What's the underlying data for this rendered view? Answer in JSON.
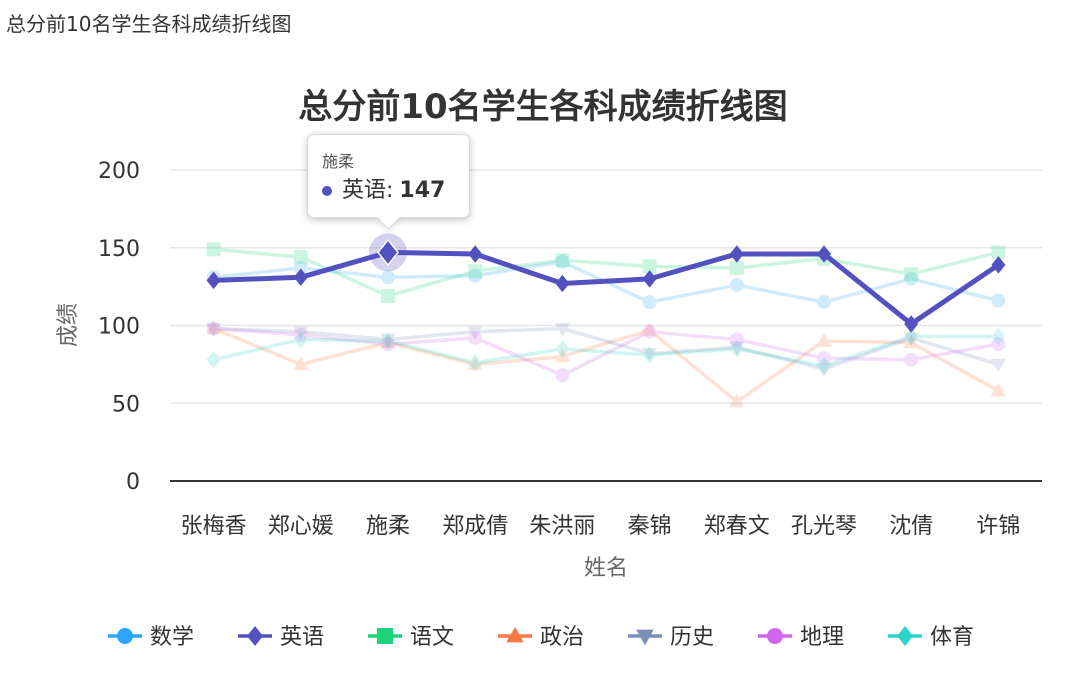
{
  "page_caption": "总分前10名学生各科成绩折线图",
  "chart_data": {
    "type": "line",
    "title": "总分前10名学生各科成绩折线图",
    "xlabel": "姓名",
    "ylabel": "成绩",
    "ylim": [
      0,
      200
    ],
    "yticks": [
      0,
      50,
      100,
      150,
      200
    ],
    "grid": true,
    "legend_position": "bottom",
    "categories": [
      "张梅香",
      "郑心媛",
      "施柔",
      "郑成倩",
      "朱洪丽",
      "秦锦",
      "郑春文",
      "孔光琴",
      "沈倩",
      "许锦"
    ],
    "highlighted_series": "英语",
    "series": [
      {
        "name": "数学",
        "color": "#2ca7f8",
        "marker": "circle",
        "values": [
          131,
          137,
          131,
          132,
          141,
          115,
          126,
          115,
          130,
          116
        ]
      },
      {
        "name": "英语",
        "color": "#5351c0",
        "marker": "diamond",
        "values": [
          129,
          131,
          147,
          146,
          127,
          130,
          146,
          146,
          101,
          139
        ]
      },
      {
        "name": "语文",
        "color": "#1bd47a",
        "marker": "square",
        "values": [
          149,
          144,
          119,
          135,
          142,
          138,
          137,
          143,
          133,
          147
        ]
      },
      {
        "name": "政治",
        "color": "#f77a45",
        "marker": "triangle",
        "values": [
          98,
          75,
          89,
          75,
          80,
          97,
          51,
          90,
          89,
          58
        ]
      },
      {
        "name": "历史",
        "color": "#7a8fb8",
        "marker": "triangle-down",
        "values": [
          98,
          96,
          91,
          96,
          98,
          82,
          86,
          72,
          92,
          75
        ]
      },
      {
        "name": "地理",
        "color": "#d265ef",
        "marker": "circle",
        "values": [
          98,
          94,
          88,
          92,
          68,
          96,
          91,
          79,
          78,
          88
        ]
      },
      {
        "name": "体育",
        "color": "#2dd4c9",
        "marker": "diamond",
        "values": [
          78,
          91,
          90,
          76,
          85,
          81,
          85,
          74,
          93,
          93
        ]
      }
    ],
    "tooltip": {
      "category": "施柔",
      "series": "英语",
      "series_label": "英语:",
      "value": "147",
      "color": "#5351c0"
    }
  }
}
